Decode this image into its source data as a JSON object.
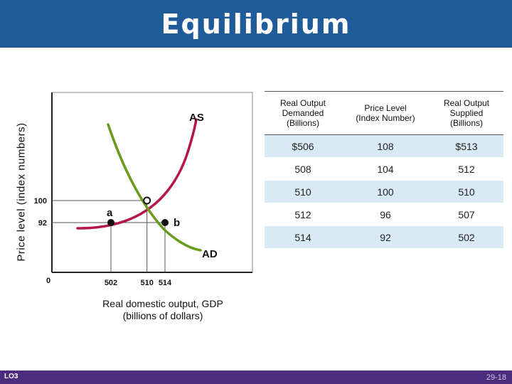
{
  "slide": {
    "title": "Equilibrium",
    "footer_left": "LO3",
    "footer_right": "29-18"
  },
  "chart_data": {
    "type": "line",
    "title": "",
    "xlabel": "Real domestic output, GDP (billions of dollars)",
    "xlabel_lines": [
      "Real domestic output, GDP",
      "(billions of dollars)"
    ],
    "ylabel": "Price level (index numbers)",
    "x_ticks": [
      {
        "value": 502,
        "label": "502"
      },
      {
        "value": 510,
        "label": "510"
      },
      {
        "value": 514,
        "label": "514"
      }
    ],
    "y_ticks": [
      {
        "value": 100,
        "label": "100"
      },
      {
        "value": 92,
        "label": "92"
      }
    ],
    "origin_label": "0",
    "series": [
      {
        "name": "AS",
        "color": "#b5164c",
        "points": [
          [
            502,
            92
          ],
          [
            507,
            96
          ],
          [
            510,
            100
          ],
          [
            512,
            104
          ],
          [
            513,
            108
          ]
        ]
      },
      {
        "name": "AD",
        "color": "#6a9a1c",
        "points": [
          [
            506,
            108
          ],
          [
            508,
            104
          ],
          [
            510,
            100
          ],
          [
            512,
            96
          ],
          [
            514,
            92
          ]
        ]
      }
    ],
    "annotations": [
      {
        "label": "a",
        "x": 502,
        "y": 92,
        "marker": "filled-dot"
      },
      {
        "label": "b",
        "x": 514,
        "y": 92,
        "marker": "filled-dot"
      },
      {
        "label": "",
        "x": 510,
        "y": 100,
        "marker": "open-circle"
      }
    ],
    "grid": false
  },
  "table": {
    "headers": [
      "Real Output Demanded (Billions)",
      "Price Level (Index Number)",
      "Real Output Supplied (Billions)"
    ],
    "header_lines": [
      [
        "Real Output",
        "Demanded",
        "(Billions)"
      ],
      [
        "Price Level",
        "(Index Number)"
      ],
      [
        "Real Output",
        "Supplied",
        "(Billions)"
      ]
    ],
    "rows": [
      [
        "$506",
        "108",
        "$513"
      ],
      [
        "508",
        "104",
        "512"
      ],
      [
        "510",
        "100",
        "510"
      ],
      [
        "512",
        "96",
        "507"
      ],
      [
        "514",
        "92",
        "502"
      ]
    ]
  },
  "colors": {
    "title_bar": "#1f5a99",
    "footer_bar": "#4b2c7e",
    "as_curve": "#b5164c",
    "ad_curve": "#6a9a1c",
    "table_shade": "#d8eaf3"
  }
}
